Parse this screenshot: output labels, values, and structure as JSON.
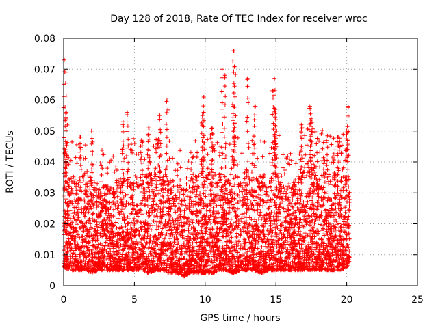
{
  "chart_data": {
    "type": "scatter",
    "title": "Day 128 of 2018, Rate Of TEC Index for receiver wroc",
    "xlabel": "GPS time / hours",
    "ylabel": "ROTI / TECUs",
    "xlim": [
      0,
      25
    ],
    "ylim": [
      0,
      0.08
    ],
    "x_ticks": [
      "0",
      "5",
      "10",
      "15",
      "20",
      "25"
    ],
    "y_ticks": [
      "0",
      "0.01",
      "0.02",
      "0.03",
      "0.04",
      "0.05",
      "0.06",
      "0.07",
      "0.08"
    ],
    "grid": true,
    "marker": "+",
    "color": "#ff0000",
    "series": [
      {
        "name": "ROTI",
        "description": "dense cloud of per-satellite ROTI samples from 0 to ~20.2 h, mostly 0.005–0.03 TECU, peaks to ~0.075",
        "envelope": {
          "x": [
            0.0,
            0.5,
            1.0,
            1.5,
            2.0,
            2.5,
            3.0,
            3.5,
            4.0,
            4.5,
            5.0,
            5.5,
            6.0,
            6.5,
            7.0,
            7.5,
            8.0,
            8.5,
            9.0,
            9.5,
            10.0,
            10.5,
            11.0,
            11.5,
            12.0,
            12.5,
            13.0,
            13.5,
            14.0,
            14.5,
            15.0,
            15.5,
            16.0,
            16.5,
            17.0,
            17.5,
            18.0,
            18.5,
            19.0,
            19.5,
            20.0,
            20.2
          ],
          "low": [
            0.006,
            0.005,
            0.005,
            0.005,
            0.004,
            0.005,
            0.005,
            0.005,
            0.005,
            0.005,
            0.005,
            0.005,
            0.004,
            0.005,
            0.005,
            0.004,
            0.004,
            0.003,
            0.004,
            0.004,
            0.004,
            0.004,
            0.005,
            0.005,
            0.004,
            0.005,
            0.005,
            0.005,
            0.004,
            0.005,
            0.005,
            0.005,
            0.005,
            0.005,
            0.005,
            0.005,
            0.005,
            0.005,
            0.005,
            0.005,
            0.006,
            0.008
          ],
          "typical_high": [
            0.032,
            0.036,
            0.034,
            0.038,
            0.036,
            0.032,
            0.033,
            0.032,
            0.035,
            0.034,
            0.036,
            0.034,
            0.038,
            0.036,
            0.038,
            0.035,
            0.033,
            0.032,
            0.035,
            0.036,
            0.038,
            0.037,
            0.036,
            0.034,
            0.04,
            0.036,
            0.038,
            0.035,
            0.036,
            0.034,
            0.038,
            0.035,
            0.033,
            0.034,
            0.038,
            0.042,
            0.04,
            0.038,
            0.037,
            0.036,
            0.04,
            0.032
          ]
        },
        "peaks": [
          {
            "x": 0.05,
            "y": 0.073
          },
          {
            "x": 0.15,
            "y": 0.069
          },
          {
            "x": 0.2,
            "y": 0.056
          },
          {
            "x": 0.15,
            "y": 0.046
          },
          {
            "x": 1.2,
            "y": 0.048
          },
          {
            "x": 2.0,
            "y": 0.05
          },
          {
            "x": 4.2,
            "y": 0.053
          },
          {
            "x": 4.5,
            "y": 0.056
          },
          {
            "x": 5.5,
            "y": 0.047
          },
          {
            "x": 6.0,
            "y": 0.051
          },
          {
            "x": 6.8,
            "y": 0.055
          },
          {
            "x": 7.3,
            "y": 0.06
          },
          {
            "x": 9.8,
            "y": 0.055
          },
          {
            "x": 9.9,
            "y": 0.061
          },
          {
            "x": 10.5,
            "y": 0.051
          },
          {
            "x": 11.2,
            "y": 0.07
          },
          {
            "x": 11.4,
            "y": 0.068
          },
          {
            "x": 12.0,
            "y": 0.076
          },
          {
            "x": 12.1,
            "y": 0.071
          },
          {
            "x": 12.0,
            "y": 0.058
          },
          {
            "x": 13.0,
            "y": 0.067
          },
          {
            "x": 13.5,
            "y": 0.058
          },
          {
            "x": 14.9,
            "y": 0.067
          },
          {
            "x": 14.8,
            "y": 0.063
          },
          {
            "x": 14.95,
            "y": 0.057
          },
          {
            "x": 15.0,
            "y": 0.05
          },
          {
            "x": 16.8,
            "y": 0.052
          },
          {
            "x": 17.4,
            "y": 0.058
          },
          {
            "x": 17.5,
            "y": 0.054
          },
          {
            "x": 19.4,
            "y": 0.048
          },
          {
            "x": 20.0,
            "y": 0.05
          },
          {
            "x": 20.1,
            "y": 0.058
          }
        ]
      }
    ]
  }
}
